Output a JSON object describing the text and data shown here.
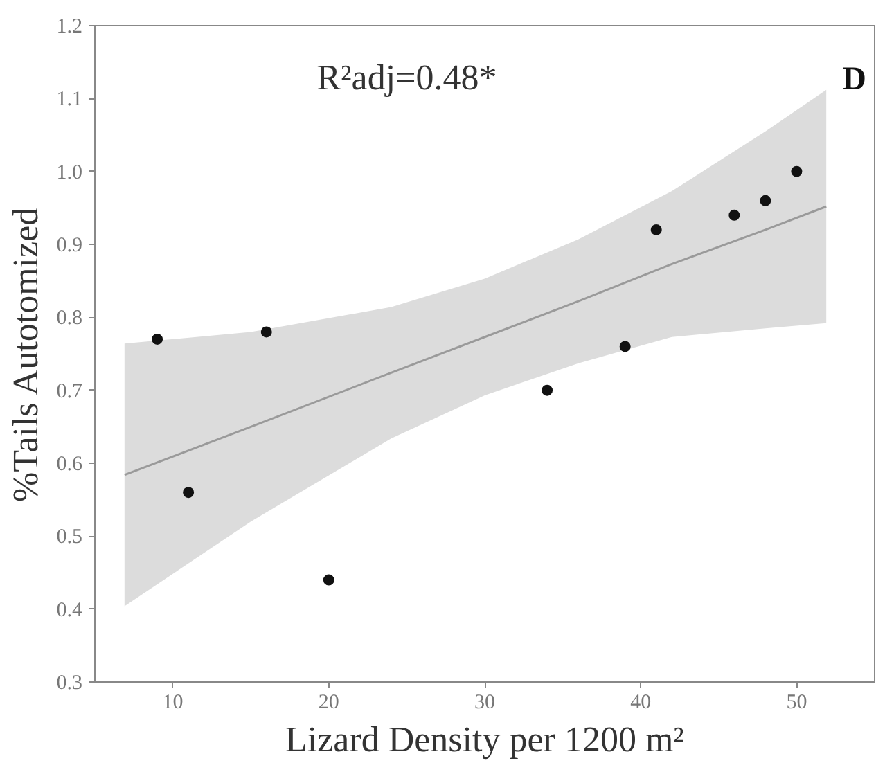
{
  "chart_data": {
    "type": "scatter",
    "xlabel": "Lizard Density per 1200 m²",
    "ylabel": "%Tails Autotomized",
    "annotations": [
      "R²adj=0.48*",
      "D"
    ],
    "xlim": [
      5,
      55
    ],
    "xticks": [
      10,
      20,
      30,
      40,
      50
    ],
    "ylim": [
      0.3,
      1.2
    ],
    "yticks": [
      0.3,
      0.4,
      0.5,
      0.6,
      0.7,
      0.8,
      0.9,
      {
        "value": 1.0,
        "label": "1.0"
      },
      1.1,
      1.2
    ],
    "grid": false,
    "series": [
      {
        "type": "line",
        "marker": "none",
        "color": "#9a9a9a",
        "x": [
          6.9,
          15,
          24,
          30,
          36,
          42,
          48,
          51.9
        ],
        "values": [
          0.584,
          0.65,
          0.724,
          0.773,
          0.822,
          0.873,
          0.92,
          0.952
        ],
        "lower": [
          0.404,
          0.52,
          0.634,
          0.693,
          0.737,
          0.773,
          0.785,
          0.792
        ],
        "upper": [
          0.764,
          0.78,
          0.814,
          0.853,
          0.907,
          0.973,
          1.055,
          1.112
        ]
      },
      {
        "marker": "circle",
        "color": "#111111",
        "x": [
          9,
          11,
          16,
          20,
          34,
          39,
          41,
          46,
          48,
          50
        ],
        "values": [
          0.77,
          0.56,
          0.78,
          0.44,
          0.7,
          0.76,
          0.92,
          0.94,
          0.96,
          1.0
        ]
      }
    ]
  }
}
